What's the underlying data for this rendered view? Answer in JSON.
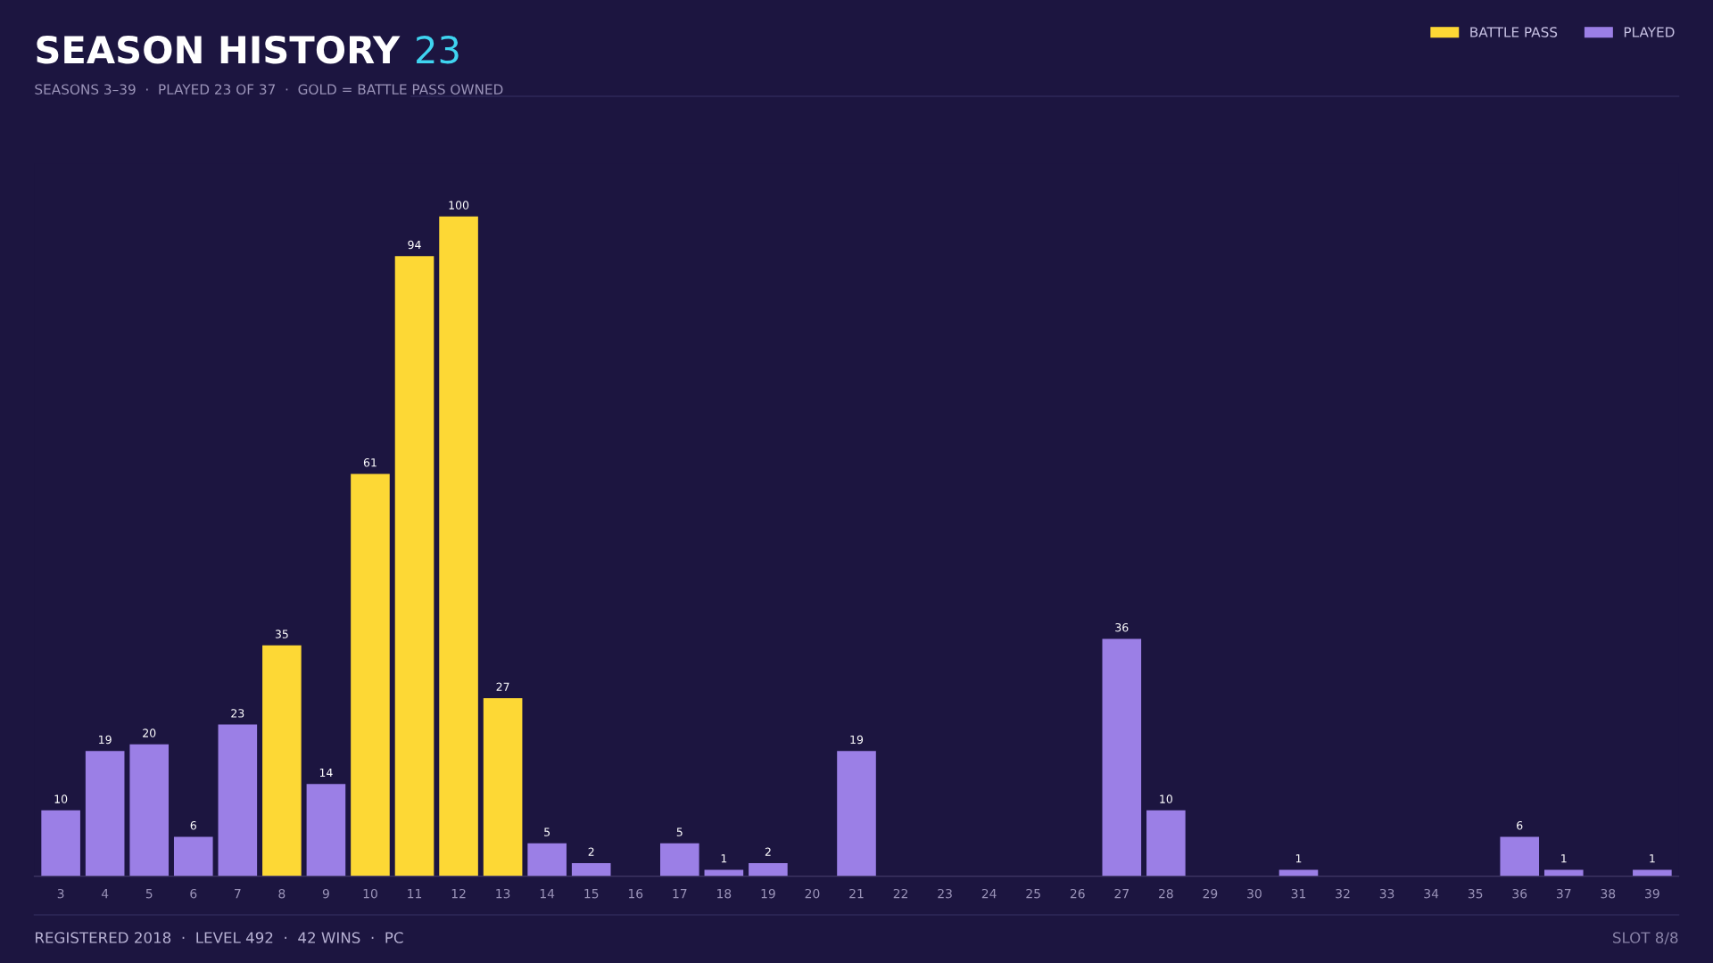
{
  "chart_data": {
    "type": "bar",
    "title": "SEASON HISTORY",
    "subtitle": "SEASONS 3–39  ·  PLAYED 23 OF 37  ·  GOLD = BATTLE PASS OWNED",
    "categories": [
      "3",
      "4",
      "5",
      "6",
      "7",
      "8",
      "9",
      "10",
      "11",
      "12",
      "13",
      "14",
      "15",
      "16",
      "17",
      "18",
      "19",
      "20",
      "21",
      "22",
      "23",
      "24",
      "25",
      "26",
      "27",
      "28",
      "29",
      "30",
      "31",
      "32",
      "33",
      "34",
      "35",
      "36",
      "37",
      "38",
      "39"
    ],
    "data_labels": true,
    "grid": false,
    "legend": "top right",
    "series": [
      {
        "name": "BATTLE PASS",
        "color": "#fdd835",
        "values": [
          null,
          null,
          null,
          null,
          null,
          35,
          null,
          61,
          94,
          100,
          27,
          null,
          null,
          null,
          null,
          null,
          null,
          null,
          null,
          null,
          null,
          null,
          null,
          null,
          null,
          null,
          null,
          null,
          null,
          null,
          null,
          null,
          null,
          null,
          null,
          null,
          null
        ]
      },
      {
        "name": "PLAYED",
        "color": "#9b7fe6",
        "values": [
          10,
          19,
          20,
          6,
          23,
          null,
          14,
          null,
          null,
          null,
          null,
          5,
          2,
          null,
          5,
          1,
          2,
          null,
          19,
          null,
          null,
          null,
          null,
          null,
          36,
          10,
          null,
          null,
          1,
          null,
          null,
          null,
          null,
          6,
          1,
          null,
          1
        ]
      }
    ],
    "annotations": [
      "23",
      "REGISTERED 2018  ·  LEVEL 492  ·  42 WINS  ·  PC",
      "SLOT 8/8"
    ]
  }
}
